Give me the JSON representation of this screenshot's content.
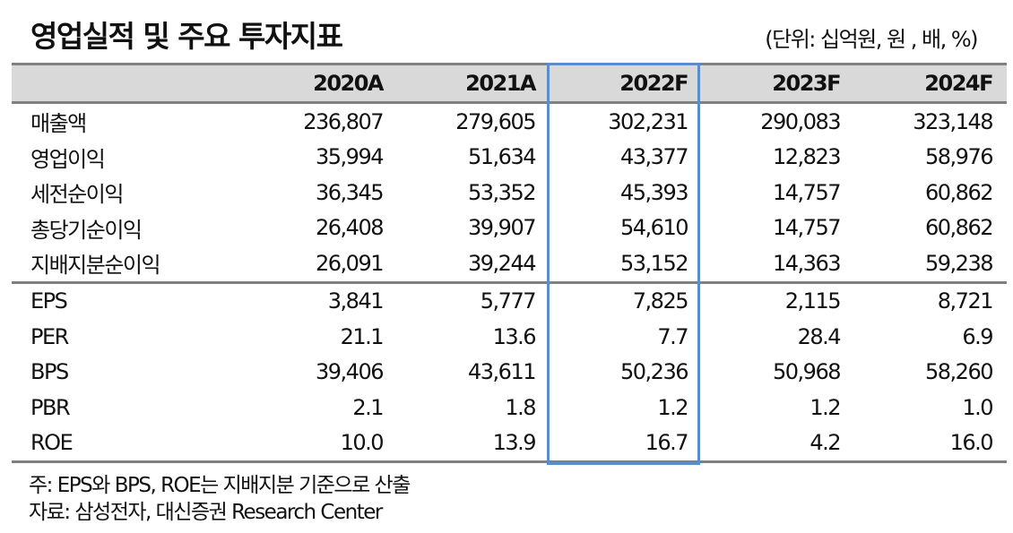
{
  "header": {
    "title": "영업실적 및 주요 투자지표",
    "unit": "(단위: 십억원, 원 , 배, %)"
  },
  "table": {
    "columns": [
      "",
      "2020A",
      "2021A",
      "2022F",
      "2023F",
      "2024F"
    ],
    "highlighted_column": "2022F",
    "highlight_color": "#5b8ccc",
    "header_bg": "#d9d9d9",
    "rows": [
      {
        "label": "매출액",
        "values": [
          "236,807",
          "279,605",
          "302,231",
          "290,083",
          "323,148"
        ]
      },
      {
        "label": "영업이익",
        "values": [
          "35,994",
          "51,634",
          "43,377",
          "12,823",
          "58,976"
        ]
      },
      {
        "label": "세전순이익",
        "values": [
          "36,345",
          "53,352",
          "45,393",
          "14,757",
          "60,862"
        ]
      },
      {
        "label": "총당기순이익",
        "values": [
          "26,408",
          "39,907",
          "54,610",
          "14,757",
          "60,862"
        ]
      },
      {
        "label": "지배지분순이익",
        "values": [
          "26,091",
          "39,244",
          "53,152",
          "14,363",
          "59,238"
        ]
      },
      {
        "label": "EPS",
        "values": [
          "3,841",
          "5,777",
          "7,825",
          "2,115",
          "8,721"
        ]
      },
      {
        "label": "PER",
        "values": [
          "21.1",
          "13.6",
          "7.7",
          "28.4",
          "6.9"
        ]
      },
      {
        "label": "BPS",
        "values": [
          "39,406",
          "43,611",
          "50,236",
          "50,968",
          "58,260"
        ]
      },
      {
        "label": "PBR",
        "values": [
          "2.1",
          "1.8",
          "1.2",
          "1.2",
          "1.0"
        ]
      },
      {
        "label": "ROE",
        "values": [
          "10.0",
          "13.9",
          "16.7",
          "4.2",
          "16.0"
        ]
      }
    ]
  },
  "notes": {
    "note": "주: EPS와 BPS, ROE는 지배지분 기준으로 산출",
    "source": "자료: 삼성전자, 대신증권 Research Center"
  }
}
